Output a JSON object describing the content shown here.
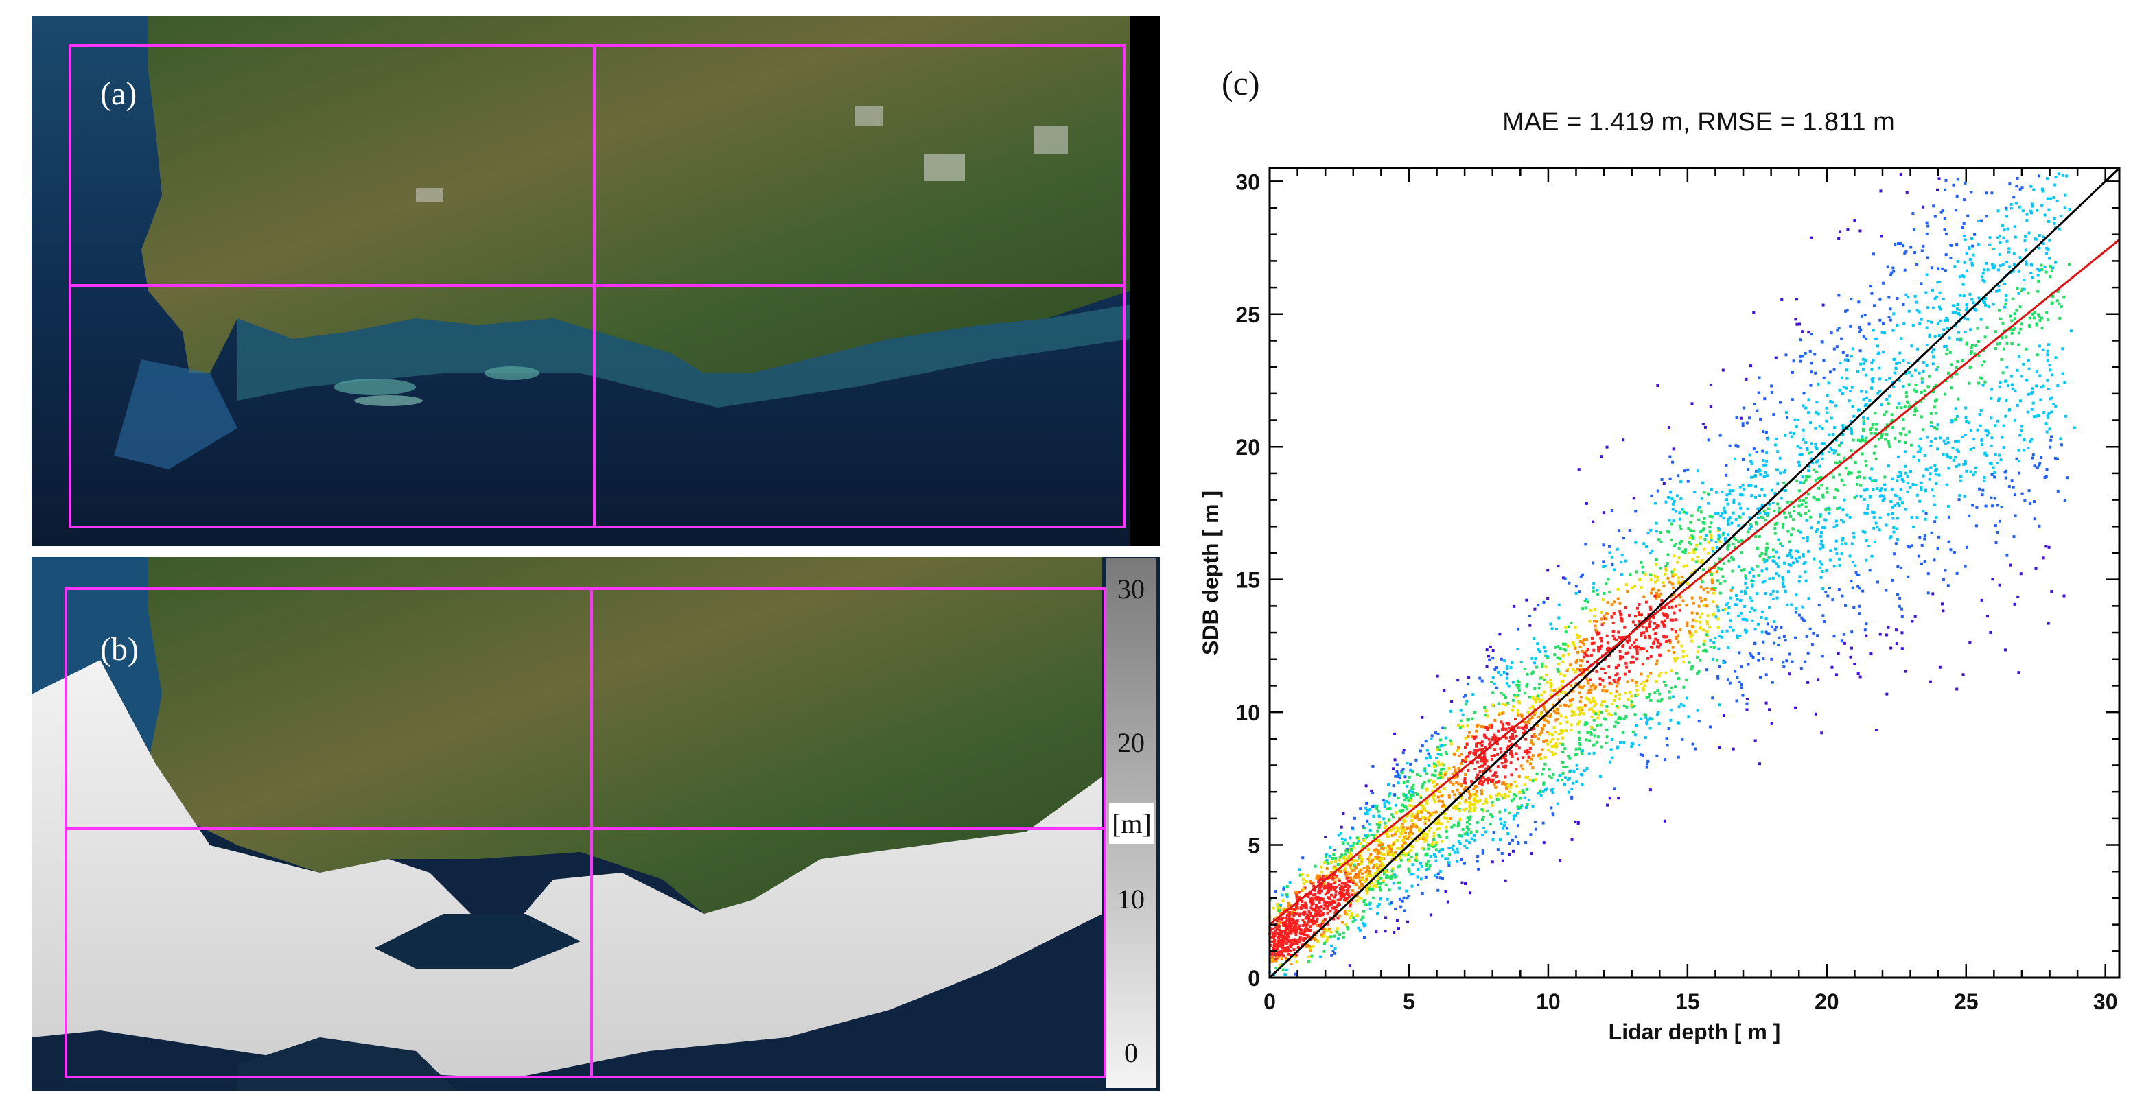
{
  "panels": {
    "a": {
      "label": "(a)"
    },
    "b": {
      "label": "(b)",
      "colorbar": {
        "ticks": [
          "30",
          "20",
          "10",
          "0"
        ],
        "unit": "[m]"
      }
    },
    "c": {
      "label": "(c)"
    }
  },
  "colors": {
    "grid_box": "#ff33ff",
    "fit_line": "#e01010",
    "identity_line": "#000000"
  },
  "chart_data": {
    "type": "scatter",
    "title": "MAE = 1.419 m, RMSE = 1.811 m",
    "xlabel": "Lidar depth [ m ]",
    "ylabel": "SDB depth [ m ]",
    "xlim": [
      0,
      30.5
    ],
    "ylim": [
      0,
      30.5
    ],
    "xticks": [
      0,
      5,
      10,
      15,
      20,
      25,
      30
    ],
    "yticks": [
      0,
      5,
      10,
      15,
      20,
      25,
      30
    ],
    "grid": false,
    "density_coloring": true,
    "density_clusters": [
      {
        "x": 0.8,
        "y": 1.5,
        "density": "high"
      },
      {
        "x": 1.8,
        "y": 2.8,
        "density": "high"
      },
      {
        "x": 4.5,
        "y": 6.0,
        "density": "medium"
      },
      {
        "x": 8.0,
        "y": 8.6,
        "density": "high"
      },
      {
        "x": 12.5,
        "y": 12.5,
        "density": "high"
      },
      {
        "x": 18.5,
        "y": 18.0,
        "density": "medium"
      },
      {
        "x": 22.0,
        "y": 22.5,
        "density": "low"
      },
      {
        "x": 25.0,
        "y": 18.0,
        "density": "low"
      }
    ],
    "lines": [
      {
        "kind": "identity",
        "x": [
          0,
          30.5
        ],
        "y": [
          0,
          30.5
        ]
      },
      {
        "kind": "regression",
        "x": [
          0,
          30.5
        ],
        "y": [
          2.0,
          27.8
        ]
      }
    ]
  }
}
